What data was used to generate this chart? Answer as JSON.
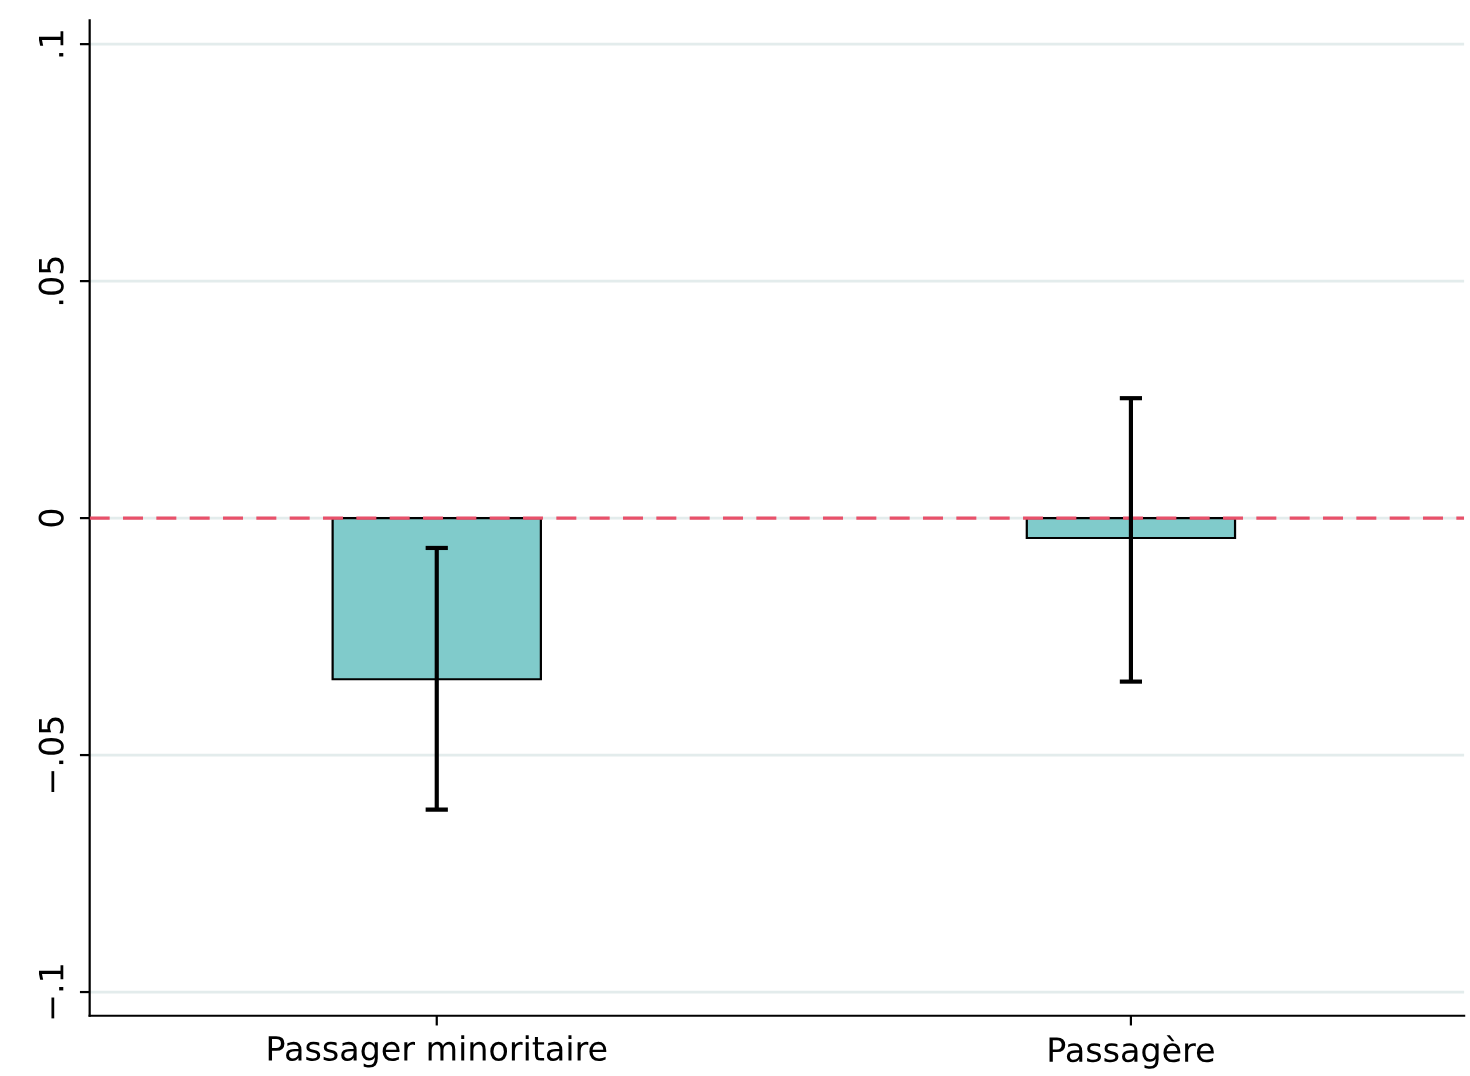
{
  "chart_data": {
    "type": "bar",
    "categories": [
      "Passager minoritaire",
      "Passagère"
    ],
    "values": [
      -0.034,
      -0.0042
    ],
    "errors": [
      [
        -0.0615,
        -0.0063
      ],
      [
        -0.0345,
        0.0253
      ]
    ],
    "color": "#80cbcb",
    "ylim": [
      -0.105,
      0.105
    ],
    "yticks": [
      {
        "value": -0.1,
        "label": "−.1"
      },
      {
        "value": -0.05,
        "label": "−.05"
      },
      0,
      {
        "value": 0.05,
        "label": ".05"
      },
      {
        "value": 0.1,
        "label": ".1"
      }
    ],
    "grid": "y",
    "ref_lines": [
      {
        "axis": "y",
        "value": 0,
        "color": "#e8516a",
        "line_style": "dashed"
      }
    ]
  }
}
